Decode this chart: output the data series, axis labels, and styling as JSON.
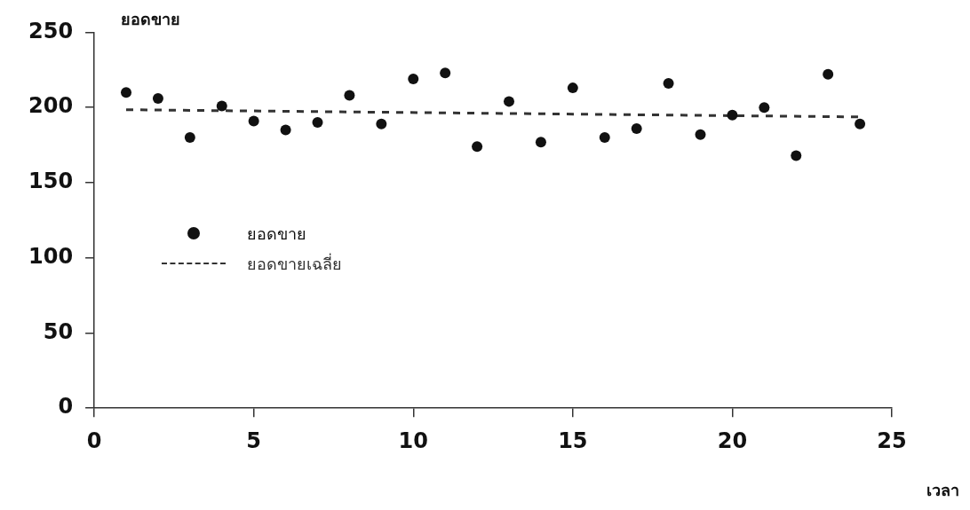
{
  "chart_data": {
    "type": "scatter",
    "xlabel": "เวลา",
    "ylabel": "ยอดขาย",
    "x": [
      1,
      2,
      3,
      4,
      5,
      6,
      7,
      8,
      9,
      10,
      11,
      12,
      13,
      14,
      15,
      16,
      17,
      18,
      19,
      20,
      21,
      22,
      23,
      24
    ],
    "series": [
      {
        "name": "ยอดขาย",
        "color": "#111111",
        "marker": "circle",
        "values": [
          210,
          206,
          180,
          201,
          191,
          185,
          190,
          208,
          189,
          219,
          223,
          174,
          204,
          177,
          213,
          180,
          186,
          216,
          182,
          195,
          200,
          168,
          222,
          189
        ]
      },
      {
        "name": "ยอดขายเฉลี่ย",
        "type": "line",
        "color": "#333333",
        "line_style": "dashed",
        "marker": "none",
        "x": [
          1,
          24
        ],
        "values": [
          198.5,
          193.7
        ]
      }
    ],
    "xlim": [
      0,
      25
    ],
    "xticks": [
      0,
      5,
      10,
      15,
      20,
      25
    ],
    "ylim": [
      0,
      250
    ],
    "yticks": [
      0,
      50,
      100,
      150,
      200,
      250
    ],
    "grid": false,
    "legend": "left"
  }
}
